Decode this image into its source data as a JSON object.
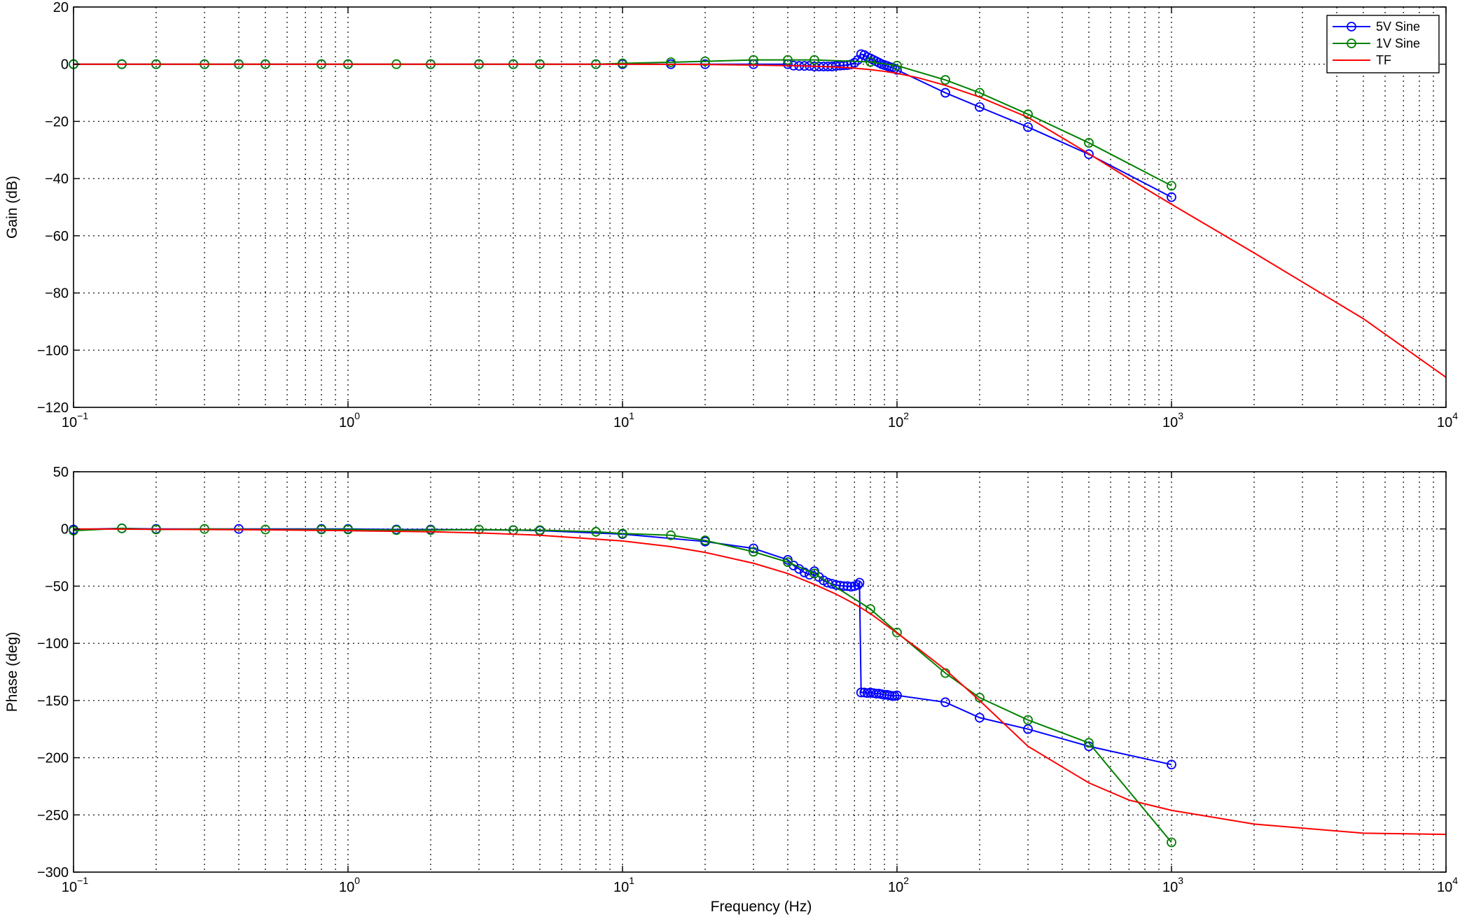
{
  "figure": {
    "xlabel": "Frequency (Hz)"
  },
  "colors": {
    "five_v": "#0000ff",
    "one_v": "#008000",
    "tf": "#ff0000",
    "grid": "#000000",
    "axes": "#000000"
  },
  "chart_data": [
    {
      "type": "line",
      "xscale": "log",
      "xlim": [
        0.1,
        10000
      ],
      "ylim": [
        -120,
        20
      ],
      "xlabel": "",
      "ylabel": "Gain (dB)",
      "grid": true,
      "legend_position": "top-right",
      "x_tick_labels": [
        {
          "base": "10",
          "exp": "−1"
        },
        {
          "base": "10",
          "exp": "0"
        },
        {
          "base": "10",
          "exp": "1"
        },
        {
          "base": "10",
          "exp": "2"
        },
        {
          "base": "10",
          "exp": "3"
        },
        {
          "base": "10",
          "exp": "4"
        }
      ],
      "y_tick_labels": [
        "20",
        "0",
        "−20",
        "−40",
        "−60",
        "−80",
        "−100",
        "−120"
      ],
      "series": [
        {
          "name": "5V Sine",
          "marker": "circle",
          "x": [
            0.1,
            0.15,
            0.2,
            0.3,
            0.4,
            0.5,
            0.8,
            1,
            2,
            3,
            4,
            5,
            8,
            10,
            15,
            20,
            30,
            40,
            42,
            44,
            46,
            48,
            50,
            52,
            54,
            56,
            58,
            60,
            62,
            64,
            66,
            68,
            70,
            72,
            74,
            76,
            78,
            80,
            82,
            84,
            86,
            88,
            90,
            92,
            94,
            96,
            98,
            100,
            150,
            200,
            300,
            500,
            1000
          ],
          "y": [
            0,
            0,
            0,
            0,
            0,
            0,
            0,
            0,
            0,
            0,
            0,
            0,
            0,
            0,
            0,
            0,
            0,
            0,
            -0.5,
            -0.6,
            -0.6,
            -0.6,
            -0.8,
            -0.8,
            -0.8,
            -0.8,
            -0.8,
            -0.6,
            -0.5,
            -0.4,
            -0.3,
            -0.1,
            0.5,
            1.5,
            3.5,
            3.2,
            2.5,
            2,
            1.5,
            1,
            0.5,
            0,
            -0.3,
            -0.6,
            -1,
            -1.2,
            -1.5,
            -2,
            -10,
            -15,
            -22,
            -31.5,
            -46.5
          ]
        },
        {
          "name": "1V Sine",
          "marker": "circle",
          "x": [
            0.1,
            0.15,
            0.2,
            0.3,
            0.4,
            0.5,
            0.8,
            1,
            1.5,
            2,
            3,
            4,
            5,
            8,
            10,
            15,
            20,
            30,
            40,
            50,
            80,
            100,
            150,
            200,
            300,
            500,
            1000
          ],
          "y": [
            0,
            0,
            0,
            0,
            0,
            0,
            0,
            0,
            0,
            0,
            0,
            0,
            0,
            0,
            0.3,
            0.7,
            1,
            1.5,
            1.5,
            1.5,
            0.8,
            -0.5,
            -5.5,
            -10,
            -17.5,
            -27.5,
            -42.5
          ]
        },
        {
          "name": "TF",
          "marker": "none",
          "x": [
            0.1,
            1,
            10,
            20,
            30,
            40,
            50,
            60,
            70,
            80,
            90,
            100,
            120,
            150,
            200,
            300,
            500,
            700,
            1000,
            2000,
            5000,
            10000
          ],
          "y": [
            0,
            0,
            0,
            -0.1,
            -0.3,
            -0.5,
            -0.7,
            -1,
            -1.4,
            -1.9,
            -2.5,
            -3.2,
            -4.8,
            -7.4,
            -11.5,
            -18.6,
            -31.3,
            -40,
            -49,
            -66,
            -89,
            -109.5
          ]
        }
      ]
    },
    {
      "type": "line",
      "xscale": "log",
      "xlim": [
        0.1,
        10000
      ],
      "ylim": [
        -300,
        50
      ],
      "xlabel": "Frequency (Hz)",
      "ylabel": "Phase (deg)",
      "grid": true,
      "x_tick_labels": [
        {
          "base": "10",
          "exp": "−1"
        },
        {
          "base": "10",
          "exp": "0"
        },
        {
          "base": "10",
          "exp": "1"
        },
        {
          "base": "10",
          "exp": "2"
        },
        {
          "base": "10",
          "exp": "3"
        },
        {
          "base": "10",
          "exp": "4"
        }
      ],
      "y_tick_labels": [
        "50",
        "0",
        "−50",
        "−100",
        "−150",
        "−200",
        "−250",
        "−300"
      ],
      "series": [
        {
          "name": "5V Sine",
          "marker": "circle",
          "x": [
            0.1,
            0.15,
            0.2,
            0.4,
            0.8,
            1,
            1.5,
            2,
            4,
            5,
            10,
            20,
            30,
            40,
            42,
            44,
            46,
            48,
            50,
            52,
            54,
            56,
            58,
            60,
            62,
            64,
            66,
            68,
            70,
            72,
            73,
            74,
            76,
            78,
            80,
            82,
            84,
            86,
            88,
            90,
            92,
            94,
            96,
            98,
            100,
            150,
            200,
            300,
            500,
            1000
          ],
          "y": [
            -0.5,
            0.5,
            0,
            0,
            0,
            0,
            -0.5,
            -0.5,
            -1,
            -1.5,
            -4.5,
            -11,
            -17,
            -27,
            -32,
            -35,
            -38,
            -40,
            -37,
            -42,
            -45,
            -47,
            -48,
            -49,
            -49.5,
            -50,
            -50,
            -50.5,
            -50,
            -49,
            -47,
            -143,
            -143,
            -143.5,
            -143,
            -143.5,
            -144,
            -144,
            -144.5,
            -145,
            -145,
            -145.5,
            -146,
            -146,
            -145.5,
            -151.5,
            -165,
            -175,
            -190,
            -206
          ]
        },
        {
          "name": "1V Sine",
          "marker": "circle",
          "x": [
            0.1,
            0.15,
            0.2,
            0.3,
            0.5,
            0.8,
            1,
            1.5,
            2,
            3,
            4,
            5,
            8,
            10,
            15,
            20,
            30,
            40,
            50,
            80,
            100,
            150,
            200,
            300,
            500,
            1000
          ],
          "y": [
            -1.5,
            0.5,
            -0.5,
            0,
            -0.5,
            -0.5,
            -0.5,
            -1,
            -1,
            -0.5,
            -1,
            -1,
            -2.5,
            -4,
            -5.5,
            -10,
            -20,
            -29,
            -39,
            -70,
            -90.5,
            -126,
            -147.5,
            -167,
            -187,
            -274
          ]
        },
        {
          "name": "TF",
          "marker": "none",
          "x": [
            0.1,
            0.2,
            0.5,
            1,
            2,
            3,
            5,
            10,
            15,
            20,
            30,
            40,
            50,
            60,
            70,
            80,
            100,
            120,
            150,
            200,
            300,
            500,
            700,
            1000,
            2000,
            5000,
            10000
          ],
          "y": [
            0,
            -0.3,
            -0.8,
            -1.5,
            -2.5,
            -3.5,
            -5.5,
            -10.5,
            -15.5,
            -20.5,
            -30,
            -39,
            -48.5,
            -57,
            -65.5,
            -74,
            -91,
            -105,
            -123,
            -150,
            -190,
            -222,
            -237,
            -246,
            -258,
            -266,
            -267
          ]
        }
      ]
    }
  ]
}
